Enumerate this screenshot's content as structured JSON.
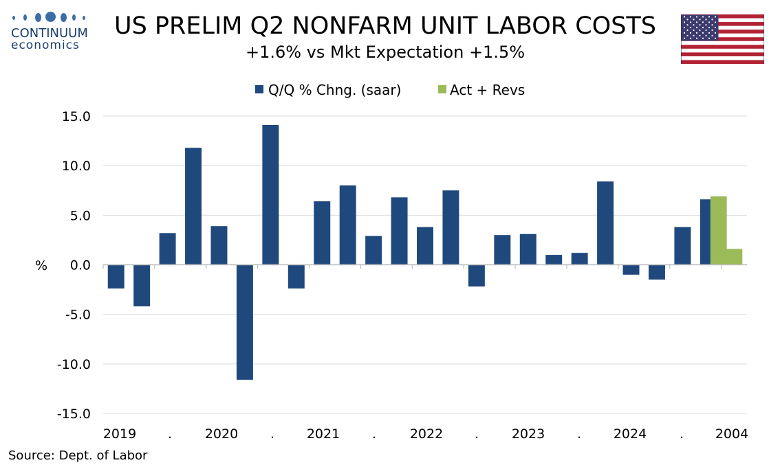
{
  "header": {
    "logo_name": "CONTINUUM",
    "logo_sub": "economics",
    "flag": "us-flag-icon"
  },
  "footer": {
    "source": "Source: Dept. of Labor"
  },
  "colors": {
    "series1": "#1f497d",
    "series2": "#9bbb59",
    "grid": "#d9d9d9",
    "logo": "#3a6ea5"
  },
  "chart_data": {
    "type": "bar",
    "title": "US PRELIM Q2  NONFARM UNIT LABOR COSTS",
    "subtitle": "+1.6% vs Mkt Expectation +1.5%",
    "ylabel": "%",
    "ylim": [
      -15,
      15
    ],
    "yticks": [
      "15.0",
      "10.0",
      "5.0",
      "0.0",
      "-5.0",
      "-10.0",
      "-15.0"
    ],
    "x_tick_labels": [
      "2019",
      ".",
      "2020",
      ".",
      "2021",
      ".",
      "2022",
      ".",
      "2023",
      ".",
      "2024",
      ".",
      "2004"
    ],
    "legend": {
      "position": "top-center"
    },
    "grid": true,
    "series": [
      {
        "name": "Q/Q % Chng. (saar)",
        "color": "#1f497d",
        "values": [
          -2.4,
          -4.2,
          3.2,
          11.8,
          3.9,
          -11.6,
          14.1,
          -2.4,
          6.4,
          8.0,
          2.9,
          6.8,
          3.8,
          7.5,
          -2.2,
          3.0,
          3.1,
          1.0,
          1.2,
          8.4,
          -1.0,
          -1.5,
          3.8,
          6.6
        ]
      },
      {
        "name": "Act + Revs",
        "color": "#9bbb59",
        "values": [
          6.9,
          1.6
        ]
      }
    ]
  }
}
